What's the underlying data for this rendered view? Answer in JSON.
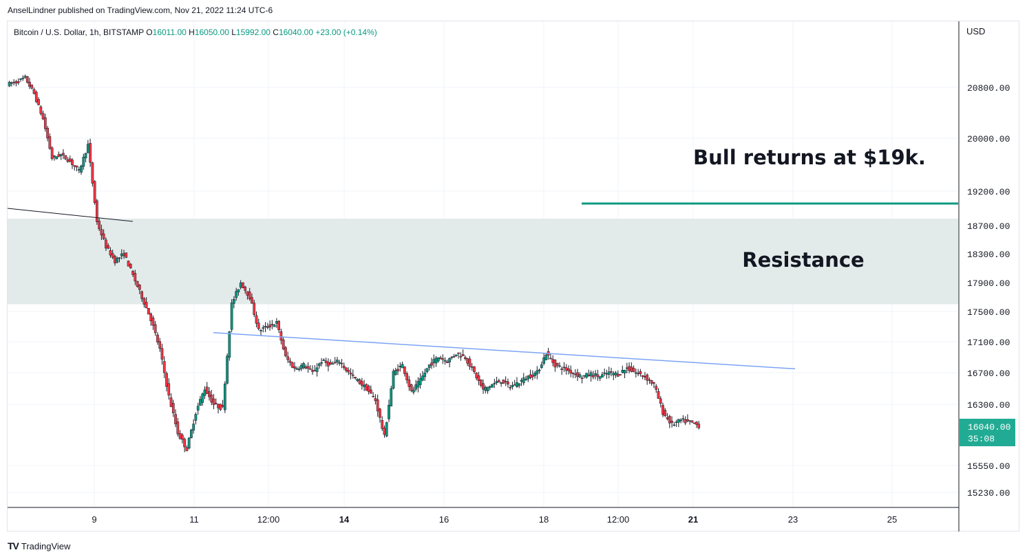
{
  "header": {
    "published_line": "AnselLindner published on TradingView.com, Nov 21, 2022 11:24 UTC-6"
  },
  "footer": {
    "logo_icon": "tradingview-logo-icon",
    "brand": "TradingView"
  },
  "chart_data": {
    "type": "candlestick",
    "symbol_line": {
      "symbol": "Bitcoin / U.S. Dollar, 1h, BITSTAMP",
      "open_label": "O",
      "open": "16011.00",
      "high_label": "H",
      "high": "16050.00",
      "low_label": "L",
      "low": "15992.00",
      "close_label": "C",
      "close": "16040.00",
      "change": "+23.00 (+0.14%)"
    },
    "currency": "USD",
    "y_tick_labels": [
      "20800.00",
      "20000.00",
      "19200.00",
      "18700.00",
      "18300.00",
      "17900.00",
      "17500.00",
      "17100.00",
      "16700.00",
      "16300.00",
      "15550.00",
      "15230.00"
    ],
    "x_tick_labels": [
      {
        "label": "9",
        "bold": false
      },
      {
        "label": "11",
        "bold": false
      },
      {
        "label": "12:00",
        "bold": false
      },
      {
        "label": "14",
        "bold": true
      },
      {
        "label": "16",
        "bold": false
      },
      {
        "label": "18",
        "bold": false
      },
      {
        "label": "12:00",
        "bold": false
      },
      {
        "label": "21",
        "bold": true
      },
      {
        "label": "23",
        "bold": false
      },
      {
        "label": "25",
        "bold": false
      }
    ],
    "last_price": {
      "value": "16040.00",
      "countdown": "35:08"
    },
    "price_path": [
      [
        0,
        20850
      ],
      [
        1,
        20880
      ],
      [
        2,
        20950
      ],
      [
        3,
        20700
      ],
      [
        4,
        20300
      ],
      [
        5,
        19700
      ],
      [
        6,
        19750
      ],
      [
        7,
        19650
      ],
      [
        8,
        19500
      ],
      [
        9,
        19900
      ],
      [
        10,
        18750
      ],
      [
        11,
        18400
      ],
      [
        12,
        18200
      ],
      [
        13,
        18300
      ],
      [
        14,
        18000
      ],
      [
        15,
        17700
      ],
      [
        16,
        17400
      ],
      [
        17,
        17000
      ],
      [
        18,
        16400
      ],
      [
        19,
        15950
      ],
      [
        20,
        15750
      ],
      [
        21,
        16200
      ],
      [
        22,
        16500
      ],
      [
        23,
        16300
      ],
      [
        24,
        16250
      ],
      [
        25,
        17600
      ],
      [
        26,
        17900
      ],
      [
        27,
        17700
      ],
      [
        28,
        17250
      ],
      [
        29,
        17300
      ],
      [
        30,
        17350
      ],
      [
        31,
        16900
      ],
      [
        32,
        16750
      ],
      [
        33,
        16800
      ],
      [
        34,
        16700
      ],
      [
        35,
        16850
      ],
      [
        36,
        16800
      ],
      [
        37,
        16850
      ],
      [
        38,
        16700
      ],
      [
        39,
        16600
      ],
      [
        40,
        16500
      ],
      [
        41,
        16350
      ],
      [
        42,
        15900
      ],
      [
        43,
        16700
      ],
      [
        44,
        16800
      ],
      [
        45,
        16450
      ],
      [
        46,
        16600
      ],
      [
        47,
        16800
      ],
      [
        48,
        16900
      ],
      [
        49,
        16850
      ],
      [
        50,
        16950
      ],
      [
        51,
        16900
      ],
      [
        52,
        16700
      ],
      [
        53,
        16480
      ],
      [
        54,
        16550
      ],
      [
        55,
        16600
      ],
      [
        56,
        16520
      ],
      [
        57,
        16580
      ],
      [
        58,
        16650
      ],
      [
        59,
        16700
      ],
      [
        60,
        16950
      ],
      [
        61,
        16800
      ],
      [
        62,
        16750
      ],
      [
        63,
        16700
      ],
      [
        64,
        16650
      ],
      [
        65,
        16680
      ],
      [
        66,
        16650
      ],
      [
        67,
        16700
      ],
      [
        68,
        16680
      ],
      [
        69,
        16760
      ],
      [
        70,
        16700
      ],
      [
        71,
        16650
      ],
      [
        72,
        16550
      ],
      [
        73,
        16200
      ],
      [
        74,
        16050
      ],
      [
        75,
        16100
      ],
      [
        76,
        16080
      ],
      [
        77,
        16040
      ]
    ],
    "annotations": [
      {
        "kind": "text",
        "text": "Bull returns at $19k."
      },
      {
        "kind": "text",
        "text": "Resistance"
      },
      {
        "kind": "horizontal-line",
        "price": 19000,
        "color": "#089981"
      },
      {
        "kind": "zone",
        "from": 17600,
        "to": 18800,
        "color": "#e3ebea"
      },
      {
        "kind": "trendline",
        "color": "#7ba3f5",
        "points": [
          [
            31,
            17220
          ],
          [
            70,
            16750
          ]
        ]
      },
      {
        "kind": "trendline",
        "color": "#131722",
        "points": [
          [
            0,
            18950
          ],
          [
            16,
            18760
          ]
        ]
      }
    ],
    "colors": {
      "up": "#089981",
      "down": "#f23645",
      "price_tag": "#22ab94"
    },
    "grid": true
  }
}
